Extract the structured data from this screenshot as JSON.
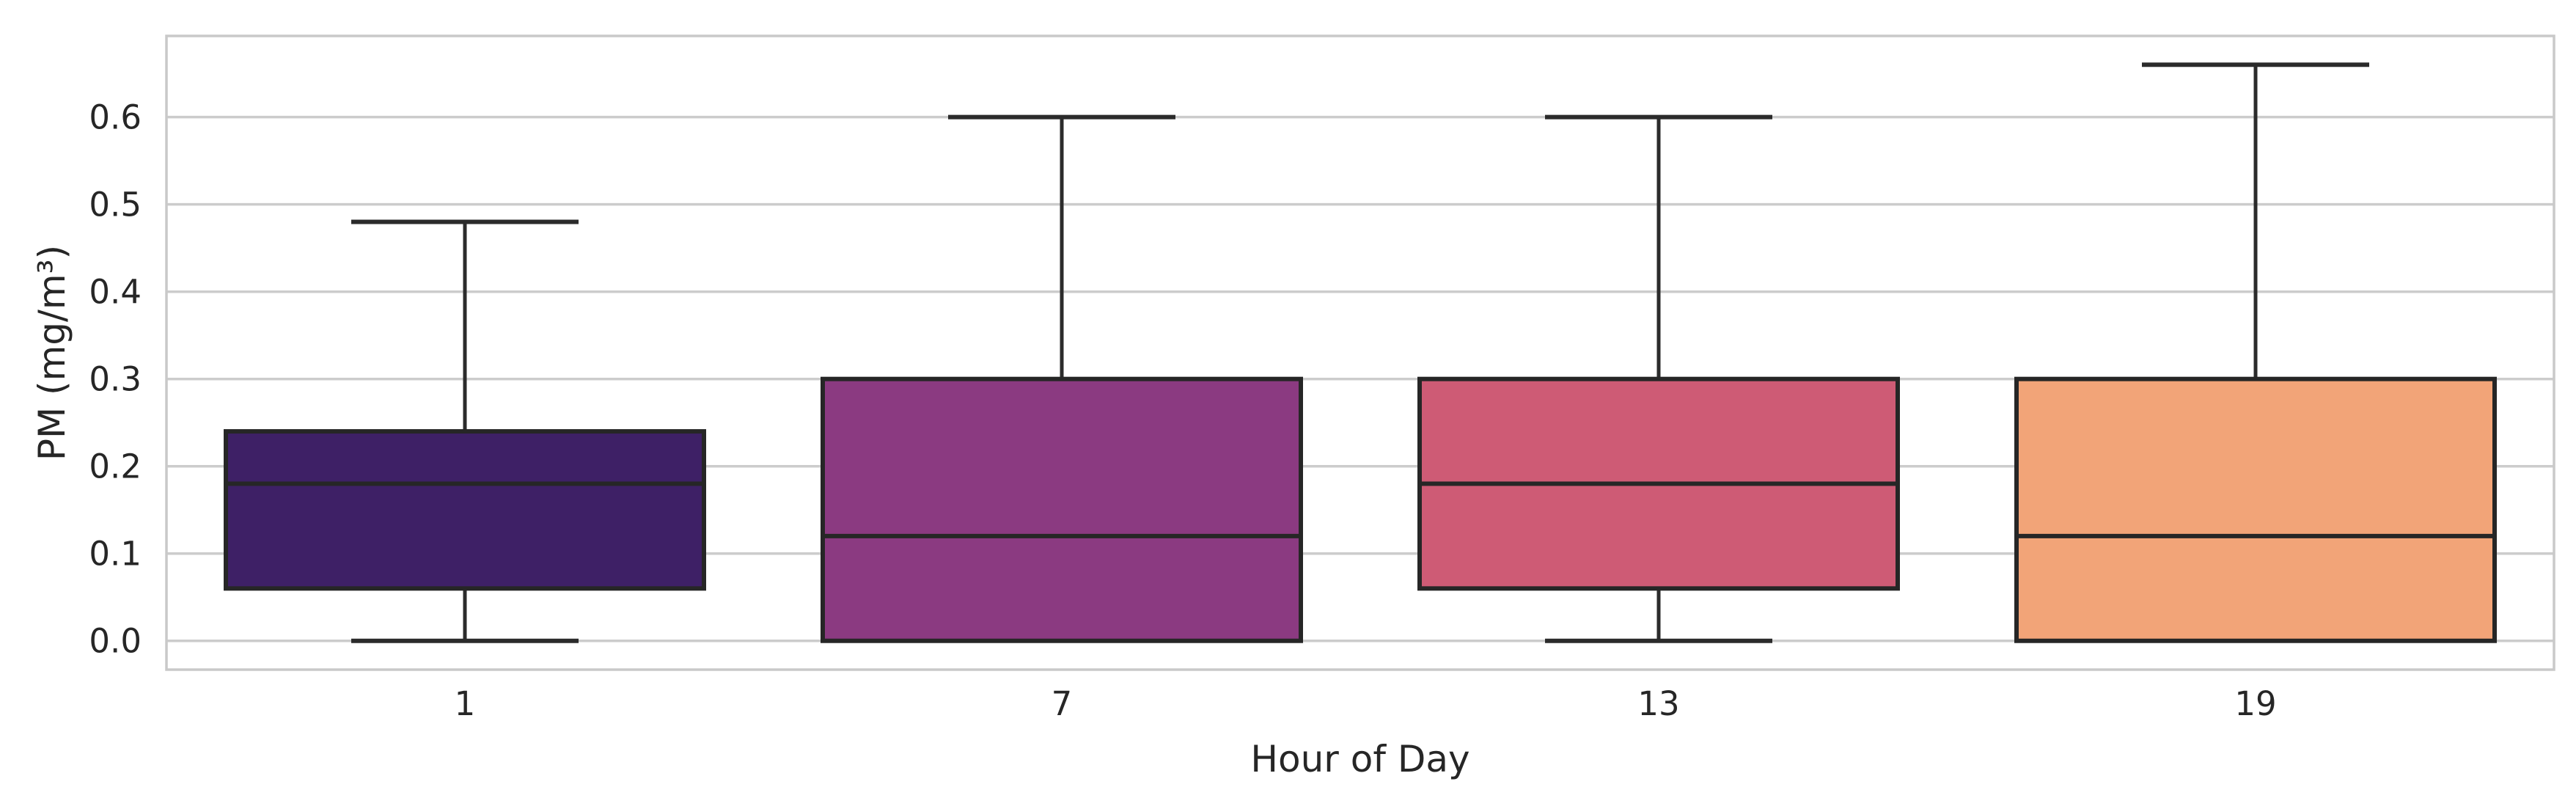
{
  "chart_data": {
    "type": "box",
    "title": "",
    "xlabel": "Hour of Day",
    "ylabel": "PM (mg/m³)",
    "categories": [
      "1",
      "7",
      "13",
      "19"
    ],
    "ytick_labels": [
      "0.0",
      "0.1",
      "0.2",
      "0.3",
      "0.4",
      "0.5",
      "0.6"
    ],
    "ytick_values": [
      0.0,
      0.1,
      0.2,
      0.3,
      0.4,
      0.5,
      0.6
    ],
    "ylim": [
      -0.033,
      0.693
    ],
    "grid": true,
    "legend": "none",
    "series": [
      {
        "category": "1",
        "whisker_low": 0.0,
        "q1": 0.06,
        "median": 0.18,
        "q3": 0.24,
        "whisker_high": 0.48,
        "fill": "#3E2066"
      },
      {
        "category": "7",
        "whisker_low": 0.0,
        "q1": 0.0,
        "median": 0.12,
        "q3": 0.3,
        "whisker_high": 0.6,
        "fill": "#8B3A81"
      },
      {
        "category": "13",
        "whisker_low": 0.0,
        "q1": 0.06,
        "median": 0.18,
        "q3": 0.3,
        "whisker_high": 0.6,
        "fill": "#CE5B75"
      },
      {
        "category": "19",
        "whisker_low": 0.0,
        "q1": 0.0,
        "median": 0.12,
        "q3": 0.3,
        "whisker_high": 0.66,
        "fill": "#F2A478"
      }
    ],
    "colors": {
      "box_edge": "#262626",
      "median_line": "#262626",
      "whisker": "#2B2B2B",
      "grid_line": "#CCCCCC",
      "spine": "#C9C9C9",
      "text": "#262626",
      "background": "#FFFFFF"
    }
  }
}
